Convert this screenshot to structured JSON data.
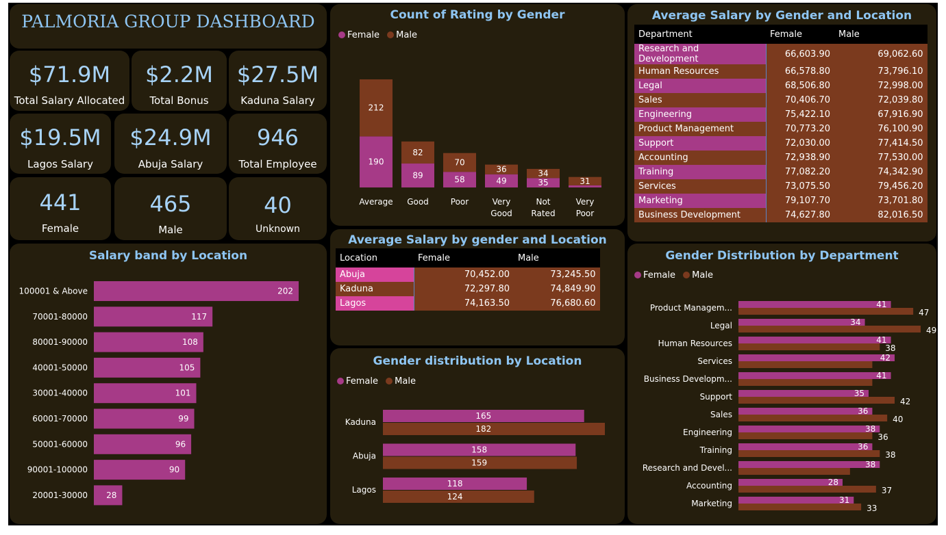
{
  "colors": {
    "female": "#a63a87",
    "male": "#7b3a1e",
    "panel": "#251e0d",
    "title": "#8ec5f2",
    "female_bright": "#d6449b"
  },
  "header": {
    "title": "PALMORIA GROUP DASHBOARD"
  },
  "kpis": [
    {
      "value": "$71.9M",
      "label": "Total Salary Allocated"
    },
    {
      "value": "$2.2M",
      "label": "Total Bonus"
    },
    {
      "value": "$27.5M",
      "label": "Kaduna Salary"
    },
    {
      "value": "$19.5M",
      "label": "Lagos Salary"
    },
    {
      "value": "$24.9M",
      "label": "Abuja Salary"
    },
    {
      "value": "946",
      "label": "Total Employee"
    },
    {
      "value": "441",
      "label": "Female"
    },
    {
      "value": "465",
      "label": "Male"
    },
    {
      "value": "40",
      "label": "Unknown"
    }
  ],
  "legend": {
    "female": "Female",
    "male": "Male"
  },
  "chart_data": [
    {
      "id": "rating",
      "type": "bar",
      "stacked": true,
      "title": "Count of Rating by Gender",
      "categories": [
        "Average",
        "Good",
        "Poor",
        "Very Good",
        "Not Rated",
        "Very Poor"
      ],
      "series": [
        {
          "name": "Female",
          "values": [
            190,
            89,
            58,
            49,
            35,
            8
          ]
        },
        {
          "name": "Male",
          "values": [
            212,
            82,
            70,
            36,
            34,
            31
          ]
        }
      ],
      "labels": {
        "Female": [
          "190",
          "89",
          "58",
          "49",
          "35",
          ""
        ],
        "Male": [
          "212",
          "82",
          "70",
          "36",
          "34",
          "31"
        ]
      }
    },
    {
      "id": "salary_band",
      "type": "bar",
      "orientation": "horizontal",
      "title": "Salary band by Location",
      "categories": [
        "100001 & Above",
        "70001-80000",
        "80001-90000",
        "40001-50000",
        "30001-40000",
        "60001-70000",
        "50001-60000",
        "90001-100000",
        "20001-30000"
      ],
      "values": [
        202,
        117,
        108,
        105,
        101,
        99,
        96,
        90,
        28
      ]
    },
    {
      "id": "gender_location",
      "type": "bar",
      "orientation": "horizontal",
      "title": "Gender distribution by Location",
      "categories": [
        "Kaduna",
        "Abuja",
        "Lagos"
      ],
      "series": [
        {
          "name": "Female",
          "values": [
            165,
            158,
            118
          ]
        },
        {
          "name": "Male",
          "values": [
            182,
            159,
            124
          ]
        }
      ]
    },
    {
      "id": "gender_department",
      "type": "bar",
      "orientation": "horizontal",
      "title": "Gender Distribution by Department",
      "categories": [
        "Product Managem...",
        "Legal",
        "Human Resources",
        "Services",
        "Business Developm...",
        "Support",
        "Sales",
        "Engineering",
        "Training",
        "Research and Devel...",
        "Accounting",
        "Marketing"
      ],
      "series": [
        {
          "name": "Female",
          "values": [
            41,
            34,
            41,
            42,
            41,
            35,
            36,
            38,
            36,
            38,
            28,
            31
          ]
        },
        {
          "name": "Male",
          "values": [
            47,
            49,
            38,
            36,
            36,
            42,
            40,
            36,
            38,
            30,
            37,
            33
          ]
        }
      ],
      "labels": {
        "Female": [
          "41",
          "34",
          "41",
          "42",
          "41",
          "35",
          "36",
          "38",
          "36",
          "38",
          "28",
          "31"
        ],
        "Male": [
          "47",
          "49",
          "38",
          "",
          "",
          "42",
          "40",
          "36",
          "38",
          "",
          "37",
          "33"
        ]
      }
    },
    {
      "id": "salary_dept_table",
      "type": "table",
      "title": "Average Salary by Gender and Location",
      "columns": [
        "Department",
        "Female",
        "Male"
      ],
      "rows": [
        [
          "Research and Development",
          "66,603.90",
          "69,062.60"
        ],
        [
          "Human Resources",
          "66,578.80",
          "73,796.10"
        ],
        [
          "Legal",
          "68,506.80",
          "72,998.00"
        ],
        [
          "Sales",
          "70,406.70",
          "72,039.80"
        ],
        [
          "Engineering",
          "75,422.10",
          "67,916.90"
        ],
        [
          "Product Management",
          "70,773.20",
          "76,100.90"
        ],
        [
          "Support",
          "72,030.00",
          "77,414.50"
        ],
        [
          "Accounting",
          "72,938.90",
          "77,530.00"
        ],
        [
          "Training",
          "77,082.20",
          "74,342.90"
        ],
        [
          "Services",
          "73,075.50",
          "79,456.20"
        ],
        [
          "Marketing",
          "79,107.70",
          "73,701.80"
        ],
        [
          "Business Development",
          "74,627.80",
          "82,016.50"
        ]
      ]
    },
    {
      "id": "salary_location_table",
      "type": "table",
      "title": "Average Salary by gender and Location",
      "columns": [
        "Location",
        "Female",
        "Male"
      ],
      "rows": [
        [
          "Abuja",
          "70,452.00",
          "73,245.50"
        ],
        [
          "Kaduna",
          "72,297.80",
          "74,849.90"
        ],
        [
          "Lagos",
          "74,163.50",
          "76,680.60"
        ]
      ]
    }
  ]
}
